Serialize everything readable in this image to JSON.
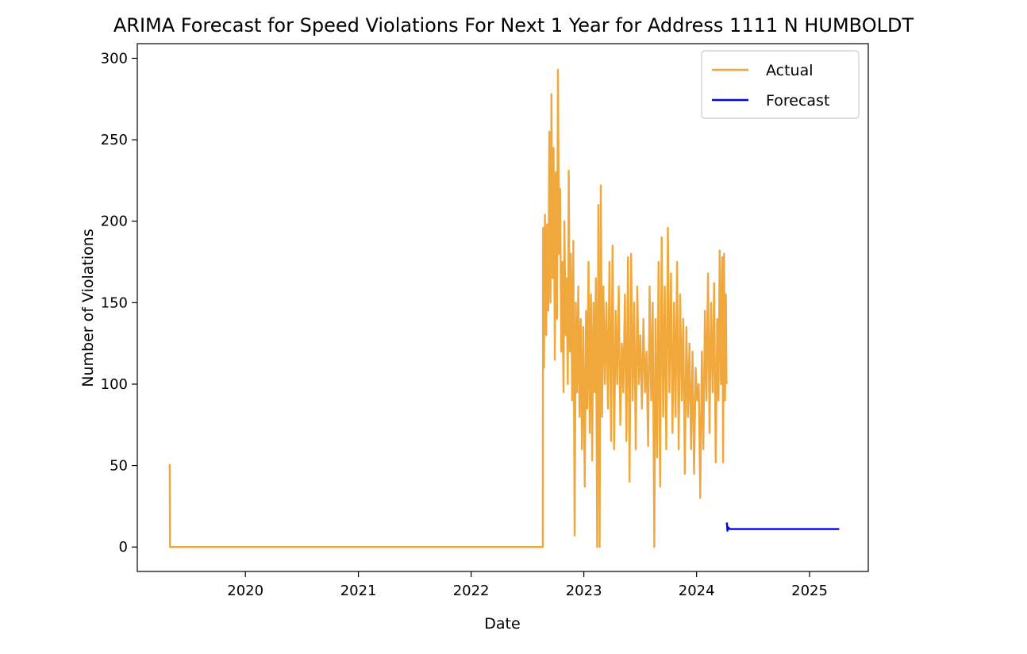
{
  "chart_data": {
    "type": "line",
    "title": "ARIMA Forecast for Speed Violations For Next 1 Year for Address 1111 N HUMBOLDT",
    "xlabel": "Date",
    "ylabel": "Number of Violations",
    "xlim": [
      "2019-01-16",
      "2025-07-10"
    ],
    "ylim": [
      -15,
      309
    ],
    "x_ticks": [
      {
        "date": "2020-01-01",
        "label": "2020"
      },
      {
        "date": "2021-01-01",
        "label": "2021"
      },
      {
        "date": "2022-01-01",
        "label": "2022"
      },
      {
        "date": "2023-01-01",
        "label": "2023"
      },
      {
        "date": "2024-01-01",
        "label": "2024"
      },
      {
        "date": "2025-01-01",
        "label": "2025"
      }
    ],
    "y_ticks": [
      0,
      50,
      100,
      150,
      200,
      250,
      300
    ],
    "grid": false,
    "legend_position": "top-right",
    "series": [
      {
        "name": "Actual",
        "color": "#f0a83c",
        "points": [
          [
            "2019-05-01",
            51
          ],
          [
            "2019-05-02",
            0
          ],
          [
            "2022-08-21",
            0
          ],
          [
            "2022-08-22",
            196
          ],
          [
            "2022-08-25",
            110
          ],
          [
            "2022-08-28",
            204
          ],
          [
            "2022-09-01",
            130
          ],
          [
            "2022-09-04",
            198
          ],
          [
            "2022-09-08",
            145
          ],
          [
            "2022-09-11",
            255
          ],
          [
            "2022-09-15",
            150
          ],
          [
            "2022-09-18",
            278
          ],
          [
            "2022-09-22",
            165
          ],
          [
            "2022-09-25",
            245
          ],
          [
            "2022-09-29",
            115
          ],
          [
            "2022-10-02",
            230
          ],
          [
            "2022-10-06",
            140
          ],
          [
            "2022-10-09",
            293
          ],
          [
            "2022-10-13",
            180
          ],
          [
            "2022-10-16",
            220
          ],
          [
            "2022-10-20",
            120
          ],
          [
            "2022-10-23",
            175
          ],
          [
            "2022-10-27",
            95
          ],
          [
            "2022-10-30",
            200
          ],
          [
            "2022-11-03",
            130
          ],
          [
            "2022-11-06",
            165
          ],
          [
            "2022-11-10",
            100
          ],
          [
            "2022-11-13",
            231
          ],
          [
            "2022-11-17",
            120
          ],
          [
            "2022-11-20",
            180
          ],
          [
            "2022-11-24",
            90
          ],
          [
            "2022-11-28",
            188
          ],
          [
            "2022-12-02",
            7
          ],
          [
            "2022-12-06",
            150
          ],
          [
            "2022-12-10",
            95
          ],
          [
            "2022-12-14",
            160
          ],
          [
            "2022-12-18",
            80
          ],
          [
            "2022-12-22",
            140
          ],
          [
            "2022-12-26",
            60
          ],
          [
            "2022-12-30",
            135
          ],
          [
            "2023-01-04",
            37
          ],
          [
            "2023-01-08",
            145
          ],
          [
            "2023-01-12",
            85
          ],
          [
            "2023-01-16",
            175
          ],
          [
            "2023-01-20",
            70
          ],
          [
            "2023-01-24",
            155
          ],
          [
            "2023-01-28",
            53
          ],
          [
            "2023-02-01",
            150
          ],
          [
            "2023-02-05",
            95
          ],
          [
            "2023-02-09",
            165
          ],
          [
            "2023-02-13",
            0
          ],
          [
            "2023-02-17",
            210
          ],
          [
            "2023-02-21",
            0
          ],
          [
            "2023-02-25",
            222
          ],
          [
            "2023-03-01",
            80
          ],
          [
            "2023-03-05",
            160
          ],
          [
            "2023-03-10",
            100
          ],
          [
            "2023-03-15",
            150
          ],
          [
            "2023-03-20",
            85
          ],
          [
            "2023-03-25",
            175
          ],
          [
            "2023-03-30",
            65
          ],
          [
            "2023-04-04",
            185
          ],
          [
            "2023-04-09",
            60
          ],
          [
            "2023-04-14",
            145
          ],
          [
            "2023-04-19",
            100
          ],
          [
            "2023-04-24",
            160
          ],
          [
            "2023-04-29",
            75
          ],
          [
            "2023-05-04",
            125
          ],
          [
            "2023-05-09",
            95
          ],
          [
            "2023-05-14",
            155
          ],
          [
            "2023-05-19",
            65
          ],
          [
            "2023-05-24",
            178
          ],
          [
            "2023-05-29",
            40
          ],
          [
            "2023-06-03",
            180
          ],
          [
            "2023-06-08",
            90
          ],
          [
            "2023-06-13",
            150
          ],
          [
            "2023-06-18",
            60
          ],
          [
            "2023-06-23",
            160
          ],
          [
            "2023-06-28",
            100
          ],
          [
            "2023-07-03",
            130
          ],
          [
            "2023-07-08",
            85
          ],
          [
            "2023-07-13",
            140
          ],
          [
            "2023-07-18",
            95
          ],
          [
            "2023-07-23",
            120
          ],
          [
            "2023-07-28",
            62
          ],
          [
            "2023-08-02",
            160
          ],
          [
            "2023-08-07",
            90
          ],
          [
            "2023-08-12",
            150
          ],
          [
            "2023-08-17",
            0
          ],
          [
            "2023-08-21",
            140
          ],
          [
            "2023-08-26",
            55
          ],
          [
            "2023-08-31",
            175
          ],
          [
            "2023-09-05",
            37
          ],
          [
            "2023-09-10",
            190
          ],
          [
            "2023-09-15",
            80
          ],
          [
            "2023-09-20",
            160
          ],
          [
            "2023-09-25",
            60
          ],
          [
            "2023-09-30",
            196
          ],
          [
            "2023-10-05",
            95
          ],
          [
            "2023-10-10",
            168
          ],
          [
            "2023-10-15",
            70
          ],
          [
            "2023-10-20",
            150
          ],
          [
            "2023-10-25",
            80
          ],
          [
            "2023-10-30",
            175
          ],
          [
            "2023-11-04",
            60
          ],
          [
            "2023-11-09",
            155
          ],
          [
            "2023-11-14",
            90
          ],
          [
            "2023-11-19",
            140
          ],
          [
            "2023-11-24",
            45
          ],
          [
            "2023-11-29",
            135
          ],
          [
            "2023-12-04",
            80
          ],
          [
            "2023-12-09",
            125
          ],
          [
            "2023-12-14",
            60
          ],
          [
            "2023-12-19",
            120
          ],
          [
            "2023-12-24",
            45
          ],
          [
            "2023-12-29",
            110
          ],
          [
            "2024-01-03",
            90
          ],
          [
            "2024-01-08",
            100
          ],
          [
            "2024-01-13",
            30
          ],
          [
            "2024-01-18",
            120
          ],
          [
            "2024-01-23",
            60
          ],
          [
            "2024-01-28",
            145
          ],
          [
            "2024-02-02",
            90
          ],
          [
            "2024-02-07",
            168
          ],
          [
            "2024-02-12",
            70
          ],
          [
            "2024-02-17",
            150
          ],
          [
            "2024-02-22",
            95
          ],
          [
            "2024-02-27",
            162
          ],
          [
            "2024-03-03",
            52
          ],
          [
            "2024-03-08",
            140
          ],
          [
            "2024-03-12",
            90
          ],
          [
            "2024-03-16",
            182
          ],
          [
            "2024-03-20",
            100
          ],
          [
            "2024-03-24",
            178
          ],
          [
            "2024-03-27",
            52
          ],
          [
            "2024-03-30",
            180
          ],
          [
            "2024-04-02",
            90
          ],
          [
            "2024-04-05",
            155
          ],
          [
            "2024-04-07",
            100
          ]
        ]
      },
      {
        "name": "Forecast",
        "color": "#0000ff",
        "points": [
          [
            "2024-04-08",
            15
          ],
          [
            "2024-04-10",
            10
          ],
          [
            "2024-04-13",
            12
          ],
          [
            "2024-04-18",
            11
          ],
          [
            "2024-05-01",
            11
          ],
          [
            "2024-07-01",
            11
          ],
          [
            "2024-10-01",
            11
          ],
          [
            "2025-01-01",
            11
          ],
          [
            "2025-04-07",
            11
          ]
        ]
      }
    ]
  }
}
